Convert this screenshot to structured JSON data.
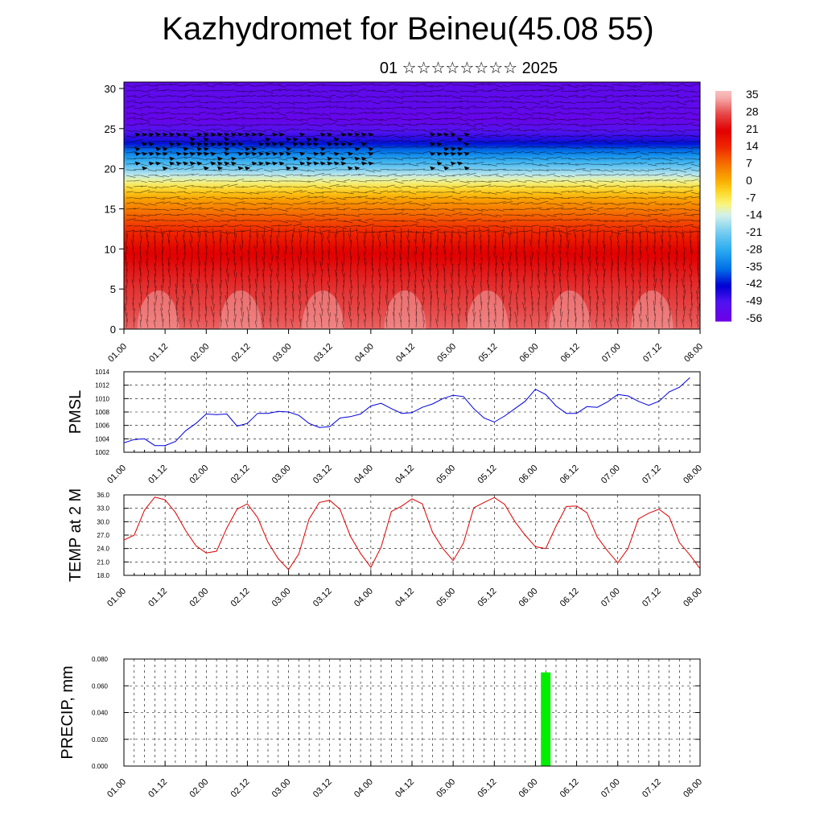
{
  "header": {
    "title": "Kazhydromet for Beineu(45.08 55)",
    "subtitle": "01 ☆☆☆☆☆☆☆☆ 2025"
  },
  "time_ticks": [
    "01.00",
    "01.12",
    "02.00",
    "02.12",
    "03.00",
    "03.12",
    "04.00",
    "04.12",
    "05.00",
    "05.12",
    "06.00",
    "06.12",
    "07.00",
    "07.12",
    "08.00"
  ],
  "colors": {
    "pmsl_line": "#0000dd",
    "temp_line": "#dd0000",
    "precip_bar": "#00ee00"
  },
  "chart_data": [
    {
      "type": "heatmap",
      "title": "",
      "xlabel": "",
      "ylabel": "",
      "x": [
        "01.00",
        "01.12",
        "02.00",
        "02.12",
        "03.00",
        "03.12",
        "04.00",
        "04.12",
        "05.00",
        "05.12",
        "06.00",
        "06.12",
        "07.00",
        "07.12",
        "08.00"
      ],
      "yticks": [
        0,
        5,
        10,
        15,
        20,
        25,
        30
      ],
      "ylim": [
        0,
        30.8
      ],
      "colorbar_labels": [
        "35",
        "28",
        "21",
        "14",
        "7",
        "0",
        "-7",
        "-14",
        "-21",
        "-28",
        "-35",
        "-42",
        "-49",
        "-56"
      ],
      "colorbar_range": [
        -60,
        38
      ],
      "profile_levels": [
        0,
        5,
        10,
        13,
        16,
        18,
        20,
        22,
        24,
        26,
        28,
        30.8
      ],
      "profile_temps": [
        30,
        26,
        20,
        12,
        2,
        -8,
        -22,
        -36,
        -50,
        -58,
        -56,
        -56
      ],
      "overlay": "wind barbs"
    },
    {
      "type": "line",
      "title": "",
      "xlabel": "",
      "ylabel": "PMSL",
      "ylim": [
        1002,
        1014
      ],
      "yticks": [
        1002,
        1004,
        1006,
        1008,
        1010,
        1012,
        1014
      ],
      "grid": true,
      "x": [
        "01.00",
        "01.03",
        "01.06",
        "01.09",
        "01.12",
        "01.15",
        "01.18",
        "01.21",
        "02.00",
        "02.03",
        "02.06",
        "02.09",
        "02.12",
        "02.15",
        "02.18",
        "02.21",
        "03.00",
        "03.03",
        "03.06",
        "03.09",
        "03.12",
        "03.15",
        "03.18",
        "03.21",
        "04.00",
        "04.03",
        "04.06",
        "04.09",
        "04.12",
        "04.15",
        "04.18",
        "04.21",
        "05.00",
        "05.03",
        "05.06",
        "05.09",
        "05.12",
        "05.15",
        "05.18",
        "05.21",
        "06.00",
        "06.03",
        "06.06",
        "06.09",
        "06.12",
        "06.15",
        "06.18",
        "06.21",
        "07.00",
        "07.03",
        "07.06",
        "07.09",
        "07.12",
        "07.15",
        "07.18",
        "07.21",
        "08.00"
      ],
      "series": [
        {
          "values": [
            1003.4,
            1003.9,
            1004.0,
            1003.0,
            1003.0,
            1003.6,
            1005.2,
            1006.3,
            1007.7,
            1007.6,
            1007.7,
            1005.9,
            1006.3,
            1007.8,
            1007.8,
            1008.1,
            1008.0,
            1007.5,
            1006.3,
            1005.7,
            1005.8,
            1007.1,
            1007.3,
            1007.7,
            1008.9,
            1009.3,
            1008.5,
            1007.8,
            1007.9,
            1008.7,
            1009.2,
            1010.0,
            1010.5,
            1010.3,
            1008.5,
            1007.1,
            1006.5,
            1007.4,
            1008.5,
            1009.6,
            1011.4,
            1010.6,
            1008.9,
            1007.8,
            1007.8,
            1008.8,
            1008.7,
            1009.5,
            1010.6,
            1010.4,
            1009.6,
            1009.0,
            1009.6,
            1011.0,
            1011.7,
            1013.1,
            null
          ]
        }
      ]
    },
    {
      "type": "line",
      "title": "",
      "xlabel": "",
      "ylabel": "TEMP at 2 M",
      "ylim": [
        18.0,
        36.0
      ],
      "yticks": [
        "18.0",
        "21.0",
        "24.0",
        "27.0",
        "30.0",
        "33.0",
        "36.0"
      ],
      "grid": true,
      "x": [
        "01.00",
        "01.03",
        "01.06",
        "01.09",
        "01.12",
        "01.15",
        "01.18",
        "01.21",
        "02.00",
        "02.03",
        "02.06",
        "02.09",
        "02.12",
        "02.15",
        "02.18",
        "02.21",
        "03.00",
        "03.03",
        "03.06",
        "03.09",
        "03.12",
        "03.15",
        "03.18",
        "03.21",
        "04.00",
        "04.03",
        "04.06",
        "04.09",
        "04.12",
        "04.15",
        "04.18",
        "04.21",
        "05.00",
        "05.03",
        "05.06",
        "05.09",
        "05.12",
        "05.15",
        "05.18",
        "05.21",
        "06.00",
        "06.03",
        "06.06",
        "06.09",
        "06.12",
        "06.15",
        "06.18",
        "06.21",
        "07.00",
        "07.03",
        "07.06",
        "07.09",
        "07.12",
        "07.15",
        "07.18",
        "07.21",
        "08.00"
      ],
      "series": [
        {
          "values": [
            25.9,
            27.0,
            32.6,
            35.5,
            34.9,
            32.1,
            28.0,
            24.6,
            23.0,
            23.4,
            28.6,
            32.8,
            34.0,
            30.9,
            25.4,
            21.7,
            19.3,
            22.8,
            30.6,
            34.3,
            34.8,
            32.8,
            26.8,
            22.9,
            19.8,
            24.3,
            32.3,
            33.5,
            35.1,
            34.0,
            27.6,
            24.0,
            21.3,
            25.2,
            33.1,
            34.3,
            35.4,
            33.9,
            30.0,
            27.0,
            24.4,
            24.0,
            29.0,
            33.4,
            33.5,
            32.0,
            26.6,
            23.5,
            20.8,
            24.0,
            30.6,
            31.9,
            32.8,
            31.1,
            25.3,
            22.6,
            19.5
          ]
        }
      ]
    },
    {
      "type": "bar",
      "title": "",
      "xlabel": "",
      "ylabel": "PRECIP, mm",
      "ylim": [
        0.0,
        0.08
      ],
      "yticks": [
        "0.000",
        "0.020",
        "0.040",
        "0.060",
        "0.080"
      ],
      "grid": true,
      "categories": [
        "06.03"
      ],
      "values": [
        0.07
      ]
    }
  ]
}
